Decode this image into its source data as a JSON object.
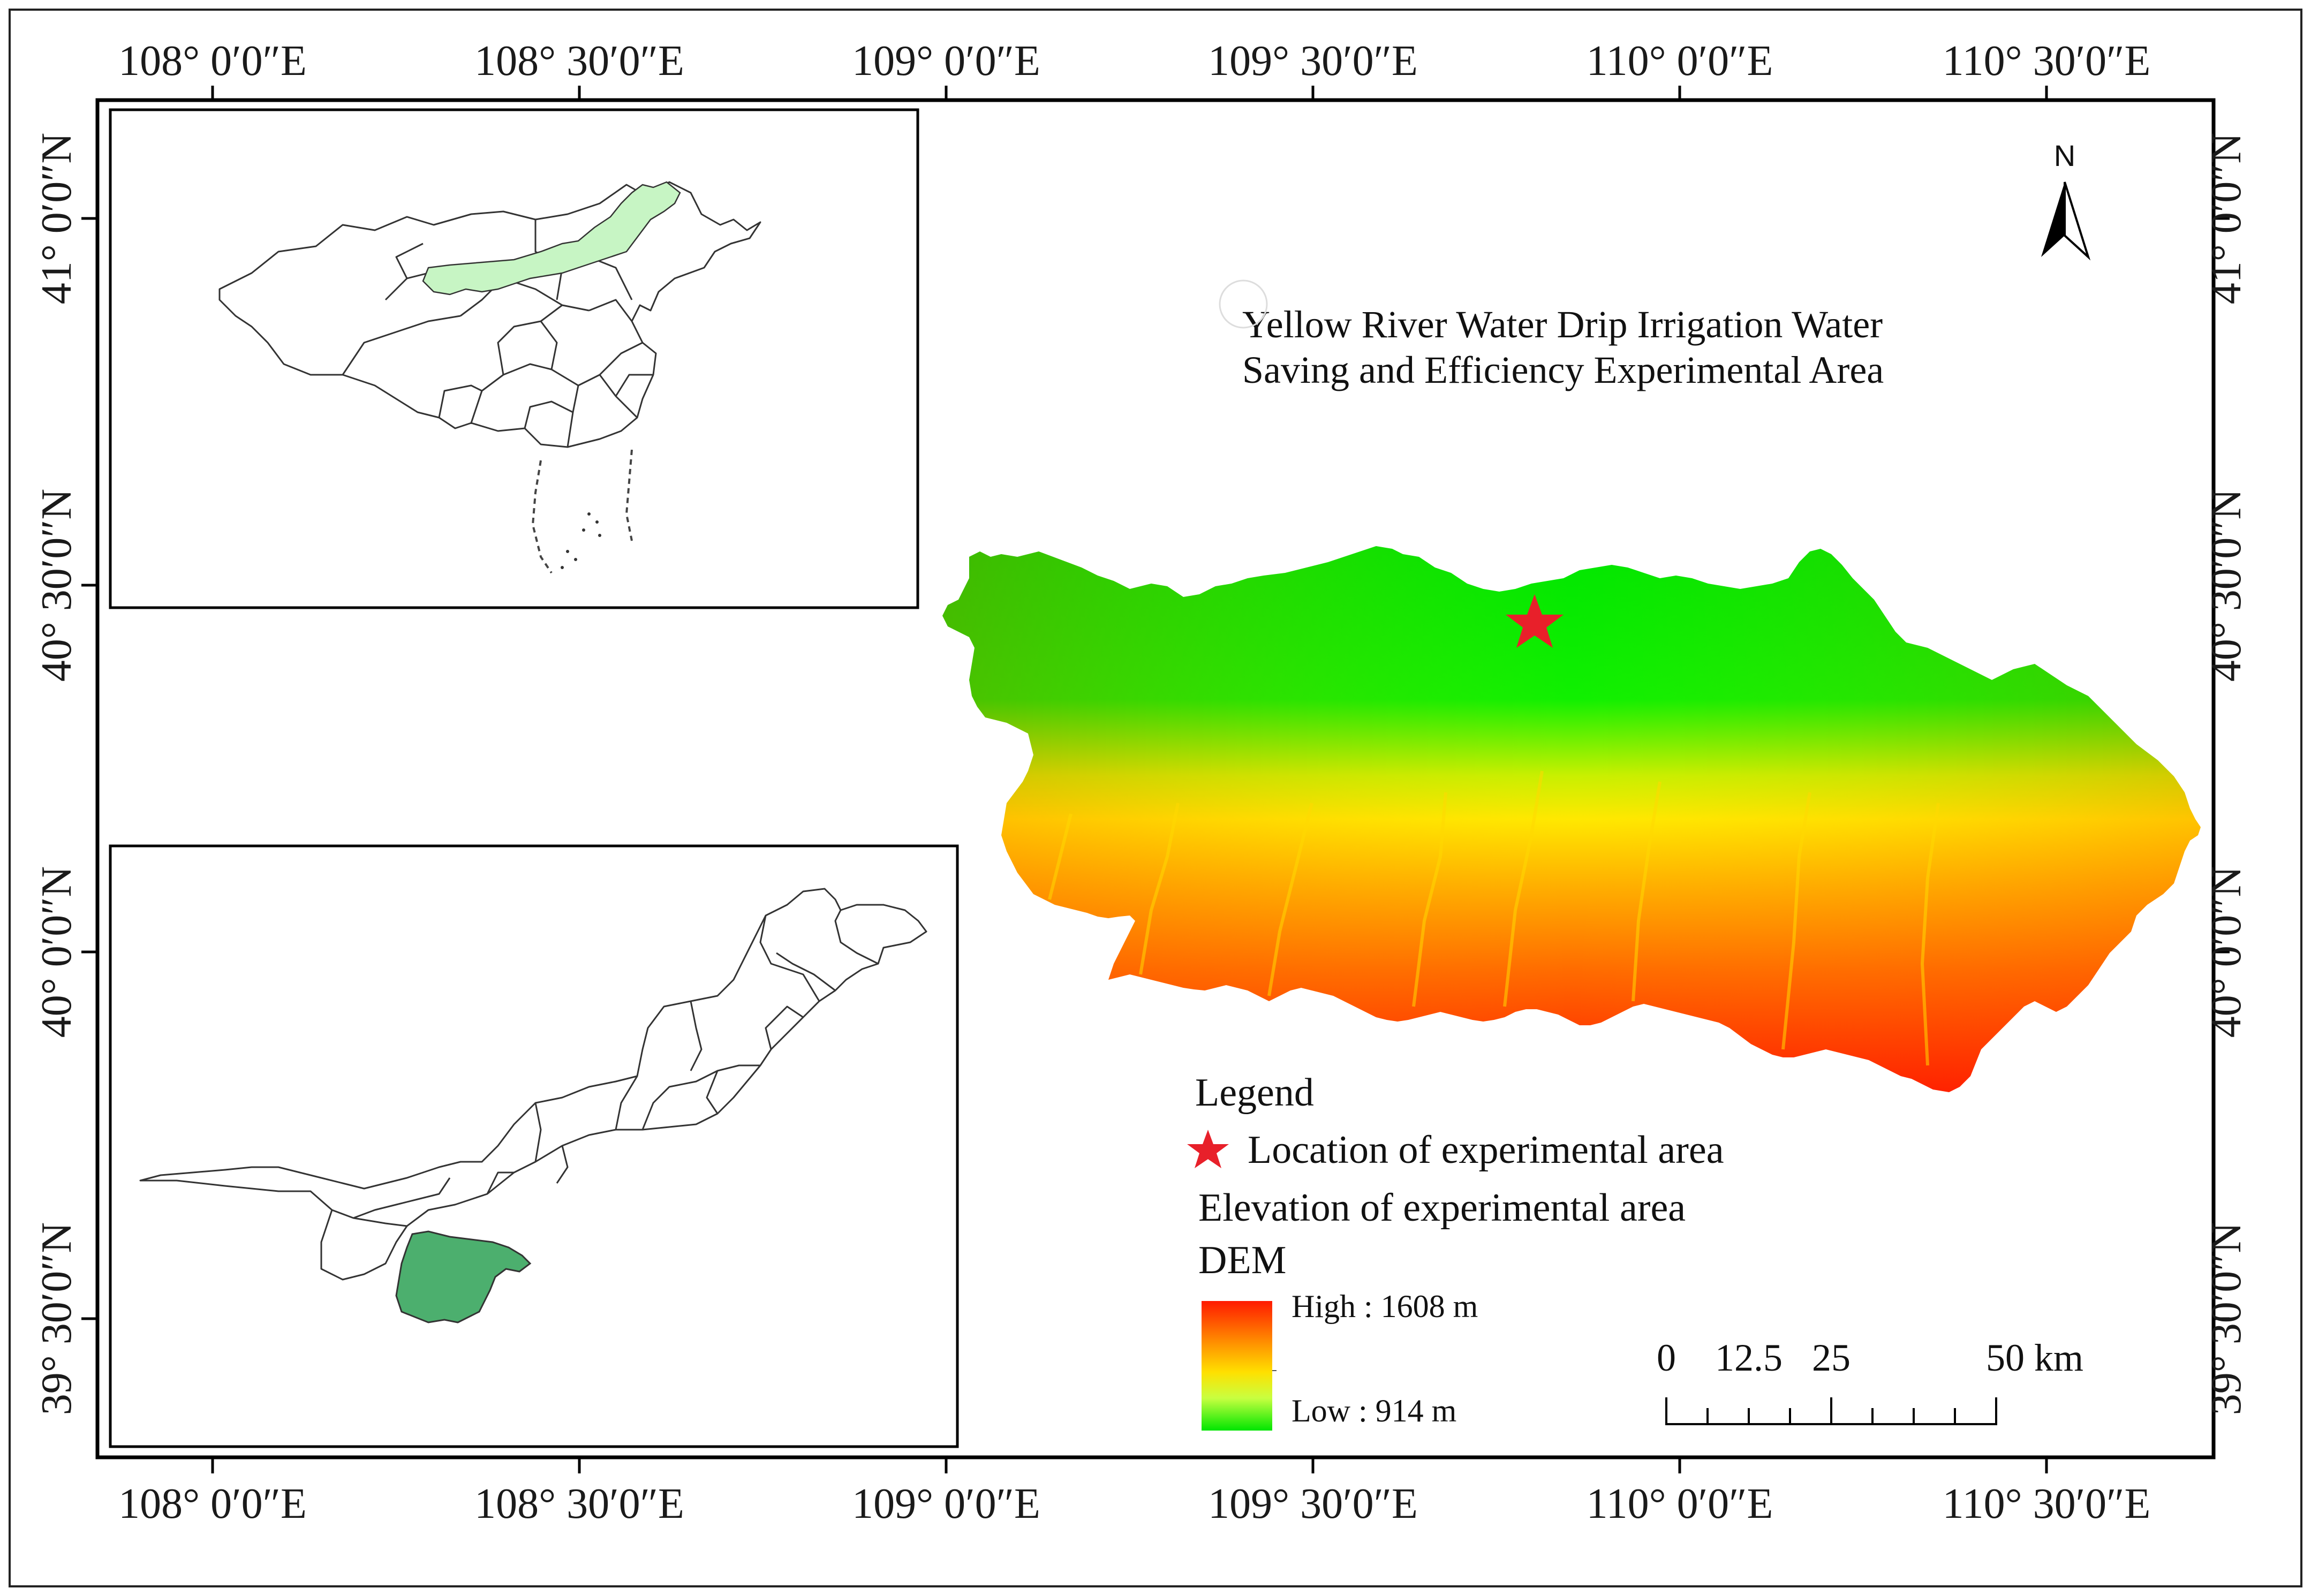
{
  "map": {
    "title_line1": "Yellow River Water Drip Irrigation Water",
    "title_line2": "Saving and Efficiency Experimental Area",
    "north_label": "N",
    "longitude_labels": [
      "108° 0′0″E",
      "108° 30′0″E",
      "109° 0′0″E",
      "109° 30′0″E",
      "110° 0′0″E",
      "110° 30′0″E"
    ],
    "latitude_labels": [
      "41° 0′0″N",
      "40° 30′0″N",
      "40° 0′0″N",
      "39° 30′0″N"
    ],
    "colors": {
      "frame": "#000000",
      "china_highlight": "#c7f5c4",
      "inner_mongolia_highlight": "#4caf6e",
      "star": "#e8202a",
      "dem_high": "#ff1a00",
      "dem_mid": "#ffff00",
      "dem_low": "#00ee00"
    }
  },
  "legend": {
    "heading": "Legend",
    "star_item": "Location of experimental area",
    "elevation_heading": "Elevation of experimental area",
    "dem_label": "DEM",
    "high_label": "High : 1608 m",
    "low_label": "Low : 914 m",
    "high_value_m": 1608,
    "low_value_m": 914
  },
  "scale_bar": {
    "labels": [
      "0",
      "12.5",
      "25",
      "50 km"
    ],
    "values_km": [
      0,
      12.5,
      25,
      50
    ]
  }
}
